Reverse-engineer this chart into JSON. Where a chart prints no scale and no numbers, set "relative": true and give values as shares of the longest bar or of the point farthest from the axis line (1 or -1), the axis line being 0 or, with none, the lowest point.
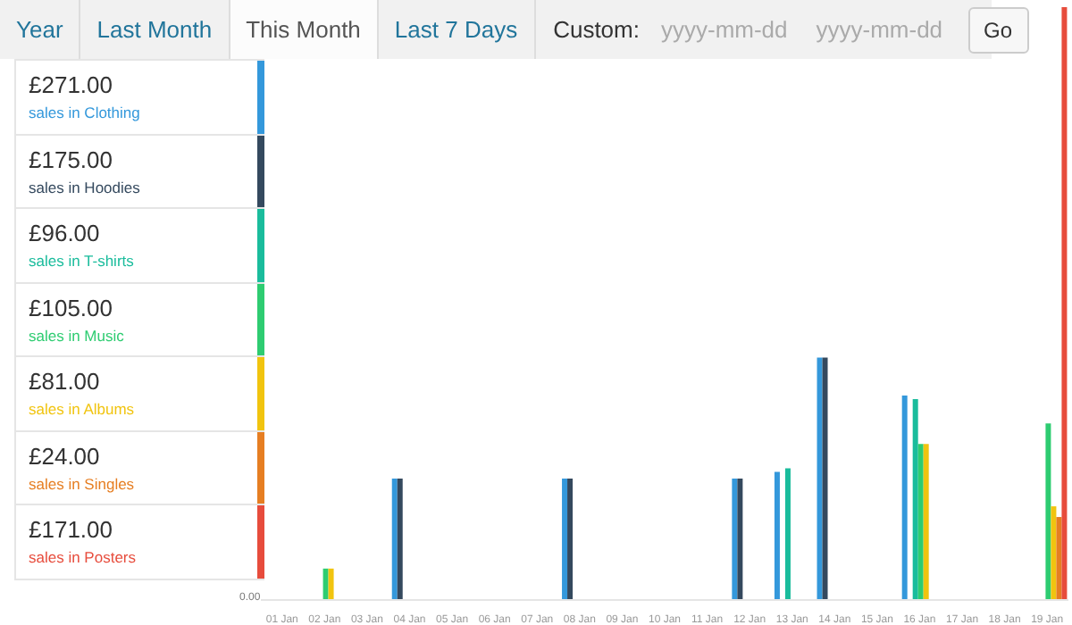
{
  "chart_data": {
    "type": "bar",
    "relative": true,
    "legend": "left",
    "categories": [
      "01 Jan",
      "02 Jan",
      "03 Jan",
      "04 Jan",
      "05 Jan",
      "06 Jan",
      "07 Jan",
      "08 Jan",
      "09 Jan",
      "10 Jan",
      "11 Jan",
      "12 Jan",
      "13 Jan",
      "14 Jan",
      "15 Jan",
      "16 Jan",
      "17 Jan",
      "18 Jan",
      "19 Jan"
    ],
    "series": [
      {
        "name": "sales in Clothing",
        "color": "#3498db",
        "values": [
          0,
          0,
          0,
          0.205,
          0,
          0,
          0,
          0.205,
          0,
          0,
          0,
          0.205,
          0.216,
          0.409,
          0,
          0.345,
          0,
          0,
          0
        ]
      },
      {
        "name": "sales in Hoodies",
        "color": "#34495e",
        "values": [
          0,
          0,
          0,
          0.205,
          0,
          0,
          0,
          0.205,
          0,
          0,
          0,
          0.205,
          0,
          0.409,
          0,
          0,
          0,
          0,
          0
        ]
      },
      {
        "name": "sales in T-shirts",
        "color": "#1abc9c",
        "values": [
          0,
          0,
          0,
          0,
          0,
          0,
          0,
          0,
          0,
          0,
          0,
          0,
          0.222,
          0,
          0,
          0.339,
          0,
          0,
          0
        ]
      },
      {
        "name": "sales in Music",
        "color": "#2ecc71",
        "values": [
          0,
          0.053,
          0,
          0,
          0,
          0,
          0,
          0,
          0,
          0,
          0,
          0,
          0,
          0,
          0,
          0.263,
          0,
          0,
          0.298
        ]
      },
      {
        "name": "sales in Albums",
        "color": "#f1c40f",
        "values": [
          0,
          0.053,
          0,
          0,
          0,
          0,
          0,
          0,
          0,
          0,
          0,
          0,
          0,
          0,
          0,
          0.263,
          0,
          0,
          0.158
        ]
      },
      {
        "name": "sales in Singles",
        "color": "#e67e22",
        "values": [
          0,
          0,
          0,
          0,
          0,
          0,
          0,
          0,
          0,
          0,
          0,
          0,
          0,
          0,
          0,
          0,
          0,
          0,
          0.14
        ]
      },
      {
        "name": "sales in Posters",
        "color": "#e74c3c",
        "values": [
          0,
          0,
          0,
          0,
          0,
          0,
          0,
          0,
          0,
          0,
          0,
          0,
          0,
          0,
          0,
          0,
          0,
          0,
          1
        ]
      }
    ],
    "annotations": [
      "£271.00",
      "£175.00",
      "£96.00",
      "£105.00",
      "£81.00",
      "£24.00",
      "£171.00",
      "Year",
      "Last Month",
      "This Month",
      "Last 7 Days",
      "Custom:",
      "yyyy-mm-dd",
      "yyyy-mm-dd",
      "Go",
      "0.00"
    ]
  }
}
